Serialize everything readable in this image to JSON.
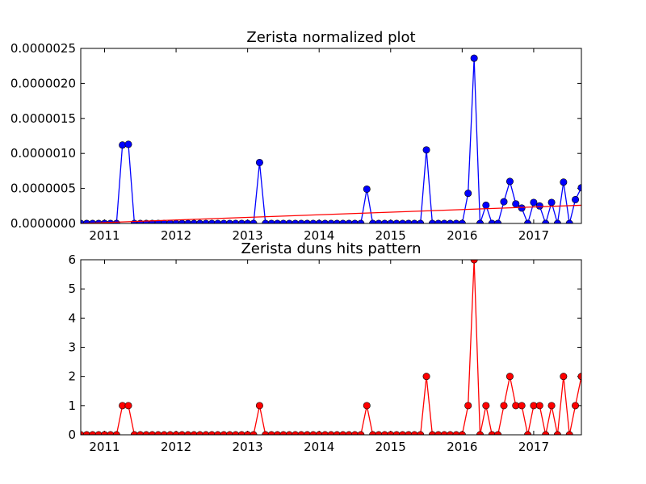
{
  "chart_data": [
    {
      "type": "line",
      "title": "Zerista normalized plot",
      "xlabel": "",
      "ylabel": "",
      "xlim": [
        2010.667,
        2017.667
      ],
      "ylim": [
        0,
        2.5e-06
      ],
      "x_tick_labels": [
        "2011",
        "2012",
        "2013",
        "2014",
        "2015",
        "2016",
        "2017"
      ],
      "y_tick_labels": [
        "0.0000000",
        "0.0000005",
        "0.0000010",
        "0.0000015",
        "0.0000020",
        "0.0000025"
      ],
      "grid": false,
      "colors": {
        "series": "#0000ff",
        "trend": "#ff0000"
      },
      "series": [
        {
          "type": "line+markers",
          "points": [
            [
              2010.667,
              0
            ],
            [
              2010.75,
              0
            ],
            [
              2010.833,
              0
            ],
            [
              2010.917,
              0
            ],
            [
              2011.0,
              0
            ],
            [
              2011.083,
              0
            ],
            [
              2011.167,
              0
            ],
            [
              2011.25,
              1.12e-06
            ],
            [
              2011.333,
              1.13e-06
            ],
            [
              2011.417,
              0
            ],
            [
              2011.5,
              0
            ],
            [
              2011.583,
              0
            ],
            [
              2011.667,
              0
            ],
            [
              2011.75,
              0
            ],
            [
              2011.833,
              0
            ],
            [
              2011.917,
              0
            ],
            [
              2012.0,
              0
            ],
            [
              2012.083,
              0
            ],
            [
              2012.167,
              0
            ],
            [
              2012.25,
              0
            ],
            [
              2012.333,
              0
            ],
            [
              2012.417,
              0
            ],
            [
              2012.5,
              0
            ],
            [
              2012.583,
              0
            ],
            [
              2012.667,
              0
            ],
            [
              2012.75,
              0
            ],
            [
              2012.833,
              0
            ],
            [
              2012.917,
              0
            ],
            [
              2013.0,
              0
            ],
            [
              2013.083,
              0
            ],
            [
              2013.167,
              8.7e-07
            ],
            [
              2013.25,
              0
            ],
            [
              2013.333,
              0
            ],
            [
              2013.417,
              0
            ],
            [
              2013.5,
              0
            ],
            [
              2013.583,
              0
            ],
            [
              2013.667,
              0
            ],
            [
              2013.75,
              0
            ],
            [
              2013.833,
              0
            ],
            [
              2013.917,
              0
            ],
            [
              2014.0,
              0
            ],
            [
              2014.083,
              0
            ],
            [
              2014.167,
              0
            ],
            [
              2014.25,
              0
            ],
            [
              2014.333,
              0
            ],
            [
              2014.417,
              0
            ],
            [
              2014.5,
              0
            ],
            [
              2014.583,
              0
            ],
            [
              2014.667,
              4.9e-07
            ],
            [
              2014.75,
              0
            ],
            [
              2014.833,
              0
            ],
            [
              2014.917,
              0
            ],
            [
              2015.0,
              0
            ],
            [
              2015.083,
              0
            ],
            [
              2015.167,
              0
            ],
            [
              2015.25,
              0
            ],
            [
              2015.333,
              0
            ],
            [
              2015.417,
              0
            ],
            [
              2015.5,
              1.05e-06
            ],
            [
              2015.583,
              0
            ],
            [
              2015.667,
              0
            ],
            [
              2015.75,
              0
            ],
            [
              2015.833,
              0
            ],
            [
              2015.917,
              0
            ],
            [
              2016.0,
              0
            ],
            [
              2016.083,
              4.3e-07
            ],
            [
              2016.167,
              2.36e-06
            ],
            [
              2016.25,
              0
            ],
            [
              2016.333,
              2.6e-07
            ],
            [
              2016.417,
              0
            ],
            [
              2016.5,
              0
            ],
            [
              2016.583,
              3.1e-07
            ],
            [
              2016.667,
              6e-07
            ],
            [
              2016.75,
              2.8e-07
            ],
            [
              2016.833,
              2.2e-07
            ],
            [
              2016.917,
              0
            ],
            [
              2017.0,
              3e-07
            ],
            [
              2017.083,
              2.5e-07
            ],
            [
              2017.167,
              0
            ],
            [
              2017.25,
              3e-07
            ],
            [
              2017.333,
              0
            ],
            [
              2017.417,
              5.9e-07
            ],
            [
              2017.5,
              0
            ],
            [
              2017.583,
              3.4e-07
            ],
            [
              2017.667,
              5.1e-07
            ]
          ]
        },
        {
          "type": "trend-line",
          "points": [
            [
              2010.667,
              0.0
            ],
            [
              2017.667,
              2.6e-07
            ]
          ]
        }
      ]
    },
    {
      "type": "line",
      "title": "Zerista duns hits pattern",
      "xlabel": "",
      "ylabel": "",
      "xlim": [
        2010.667,
        2017.667
      ],
      "ylim": [
        0,
        6
      ],
      "x_tick_labels": [
        "2011",
        "2012",
        "2013",
        "2014",
        "2015",
        "2016",
        "2017"
      ],
      "y_tick_labels": [
        "0",
        "1",
        "2",
        "3",
        "4",
        "5",
        "6"
      ],
      "grid": false,
      "colors": {
        "series": "#ff0000"
      },
      "series": [
        {
          "type": "line+markers",
          "points": [
            [
              2010.667,
              0
            ],
            [
              2010.75,
              0
            ],
            [
              2010.833,
              0
            ],
            [
              2010.917,
              0
            ],
            [
              2011.0,
              0
            ],
            [
              2011.083,
              0
            ],
            [
              2011.167,
              0
            ],
            [
              2011.25,
              1
            ],
            [
              2011.333,
              1
            ],
            [
              2011.417,
              0
            ],
            [
              2011.5,
              0
            ],
            [
              2011.583,
              0
            ],
            [
              2011.667,
              0
            ],
            [
              2011.75,
              0
            ],
            [
              2011.833,
              0
            ],
            [
              2011.917,
              0
            ],
            [
              2012.0,
              0
            ],
            [
              2012.083,
              0
            ],
            [
              2012.167,
              0
            ],
            [
              2012.25,
              0
            ],
            [
              2012.333,
              0
            ],
            [
              2012.417,
              0
            ],
            [
              2012.5,
              0
            ],
            [
              2012.583,
              0
            ],
            [
              2012.667,
              0
            ],
            [
              2012.75,
              0
            ],
            [
              2012.833,
              0
            ],
            [
              2012.917,
              0
            ],
            [
              2013.0,
              0
            ],
            [
              2013.083,
              0
            ],
            [
              2013.167,
              1
            ],
            [
              2013.25,
              0
            ],
            [
              2013.333,
              0
            ],
            [
              2013.417,
              0
            ],
            [
              2013.5,
              0
            ],
            [
              2013.583,
              0
            ],
            [
              2013.667,
              0
            ],
            [
              2013.75,
              0
            ],
            [
              2013.833,
              0
            ],
            [
              2013.917,
              0
            ],
            [
              2014.0,
              0
            ],
            [
              2014.083,
              0
            ],
            [
              2014.167,
              0
            ],
            [
              2014.25,
              0
            ],
            [
              2014.333,
              0
            ],
            [
              2014.417,
              0
            ],
            [
              2014.5,
              0
            ],
            [
              2014.583,
              0
            ],
            [
              2014.667,
              1
            ],
            [
              2014.75,
              0
            ],
            [
              2014.833,
              0
            ],
            [
              2014.917,
              0
            ],
            [
              2015.0,
              0
            ],
            [
              2015.083,
              0
            ],
            [
              2015.167,
              0
            ],
            [
              2015.25,
              0
            ],
            [
              2015.333,
              0
            ],
            [
              2015.417,
              0
            ],
            [
              2015.5,
              2
            ],
            [
              2015.583,
              0
            ],
            [
              2015.667,
              0
            ],
            [
              2015.75,
              0
            ],
            [
              2015.833,
              0
            ],
            [
              2015.917,
              0
            ],
            [
              2016.0,
              0
            ],
            [
              2016.083,
              1
            ],
            [
              2016.167,
              6
            ],
            [
              2016.25,
              0
            ],
            [
              2016.333,
              1
            ],
            [
              2016.417,
              0
            ],
            [
              2016.5,
              0
            ],
            [
              2016.583,
              1
            ],
            [
              2016.667,
              2
            ],
            [
              2016.75,
              1
            ],
            [
              2016.833,
              1
            ],
            [
              2016.917,
              0
            ],
            [
              2017.0,
              1
            ],
            [
              2017.083,
              1
            ],
            [
              2017.167,
              0
            ],
            [
              2017.25,
              1
            ],
            [
              2017.333,
              0
            ],
            [
              2017.417,
              2
            ],
            [
              2017.5,
              0
            ],
            [
              2017.583,
              1
            ],
            [
              2017.667,
              2
            ]
          ]
        }
      ]
    }
  ]
}
